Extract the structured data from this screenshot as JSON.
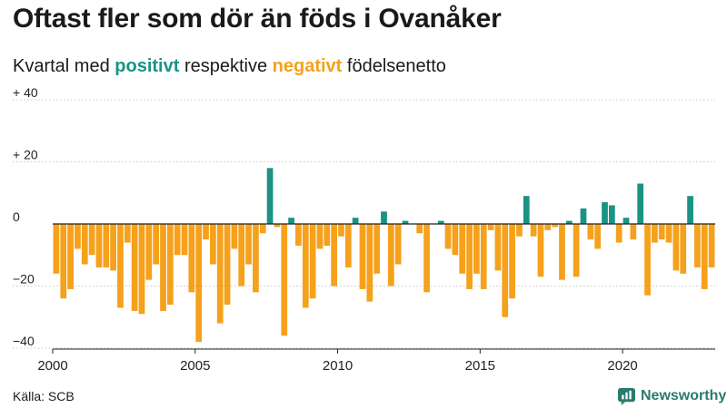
{
  "title": "Oftast fler som dör än föds i Ovanåker",
  "subtitle": {
    "prefix": "Kvartal med ",
    "positive_word": "positivt",
    "middle": " respektive ",
    "negative_word": "negativt",
    "suffix": " födelsenetto"
  },
  "source": "Källa: SCB",
  "brand": "Newsworthy",
  "colors": {
    "positive": "#1a9384",
    "negative": "#f5a11c",
    "axis": "#222222",
    "grid": "#c8c8c8",
    "brand": "#2a7a6f"
  },
  "chart_data": {
    "type": "bar",
    "title": "Oftast fler som dör än föds i Ovanåker",
    "subtitle": "Kvartal med positivt respektive negativt födelsenetto",
    "xlabel": "",
    "ylabel": "",
    "ylim": [
      -40,
      40
    ],
    "yticks": [
      40,
      20,
      0,
      -20,
      -40
    ],
    "ytick_labels": [
      "+ 40",
      "+ 20",
      "0",
      "−20",
      "−40"
    ],
    "xticks": [
      "2000",
      "2005",
      "2010",
      "2015",
      "2020"
    ],
    "start_year": 2000,
    "end_year": 2023,
    "quarters_per_year": 4,
    "series": [
      {
        "name": "Födelsenetto per kvartal",
        "values": [
          -16,
          -24,
          -21,
          -8,
          -13,
          -10,
          -14,
          -14,
          -15,
          -27,
          -6,
          -28,
          -29,
          -18,
          -13,
          -28,
          -26,
          -10,
          -10,
          -22,
          -38,
          -5,
          -13,
          -32,
          -26,
          -8,
          -20,
          -13,
          -22,
          -3,
          18,
          -1,
          -36,
          2,
          -7,
          -27,
          -24,
          -8,
          -7,
          -20,
          -4,
          -14,
          2,
          -21,
          -25,
          -16,
          4,
          -20,
          -13,
          1,
          0,
          -3,
          -22,
          0,
          1,
          -8,
          -10,
          -16,
          -21,
          -16,
          -21,
          -2,
          -15,
          -30,
          -24,
          -4,
          9,
          -4,
          -17,
          -2,
          -1,
          -18,
          1,
          -17,
          5,
          -5,
          -8,
          7,
          6,
          -6,
          2,
          -5,
          13,
          -23,
          -6,
          -5,
          -6,
          -15,
          -16,
          9,
          -14,
          -21,
          -14
        ]
      }
    ]
  }
}
